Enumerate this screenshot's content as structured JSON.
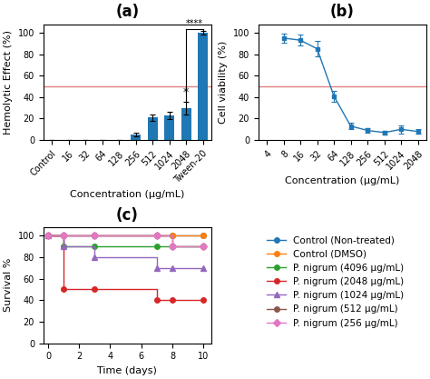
{
  "chart_data": [
    {
      "type": "bar",
      "title": "(a)",
      "xlabel": "Concentration (μg/mL)",
      "ylabel": "Hemolytic Effect (%)",
      "categories": [
        "Control",
        "16",
        "32",
        "64",
        "128",
        "256",
        "512",
        "1024",
        "2048",
        "Tween-20"
      ],
      "values": [
        0,
        0,
        0,
        0,
        0,
        5,
        21,
        23,
        30,
        100
      ],
      "errors": [
        0,
        0,
        0,
        0,
        0,
        1.5,
        3,
        3.5,
        6,
        2
      ],
      "ylim": [
        0,
        108
      ],
      "yticks": [
        0,
        20,
        40,
        60,
        80,
        100
      ],
      "hline": {
        "y": 50,
        "color": "#e08080"
      },
      "annotations": [
        {
          "text": "****",
          "x1": "2048",
          "x2": "Tween-20",
          "y": 103
        },
        {
          "text": "*",
          "x": "2048",
          "y": 39
        }
      ]
    },
    {
      "type": "line",
      "title": "(b)",
      "xlabel": "Concentration (μg/mL)",
      "ylabel": "Cell viability (%)",
      "categories": [
        "4",
        "8",
        "16",
        "32",
        "64",
        "128",
        "256",
        "512",
        "1024",
        "2048"
      ],
      "values": [
        null,
        95,
        93,
        85,
        41,
        13,
        9,
        7,
        10,
        8
      ],
      "errors": [
        null,
        4,
        5,
        7,
        5,
        3,
        2,
        1.5,
        4,
        2
      ],
      "marker": "square",
      "ylim": [
        0,
        108
      ],
      "yticks": [
        0,
        20,
        40,
        60,
        80,
        100
      ],
      "hline": {
        "y": 50,
        "color": "#e08080"
      }
    },
    {
      "type": "step",
      "title": "(c)",
      "xlabel": "Time (days)",
      "ylabel": "Survival %",
      "x": [
        0,
        1,
        3,
        7,
        8,
        10
      ],
      "series": [
        {
          "name": "Control (Non-treated)",
          "marker": "circle",
          "values": [
            100,
            100,
            100,
            100,
            100,
            100
          ]
        },
        {
          "name": "Control (DMSO)",
          "marker": "circle",
          "values": [
            100,
            100,
            100,
            100,
            100,
            100
          ]
        },
        {
          "name": "P. nigrum (4096 μg/mL)",
          "marker": "circle",
          "values": [
            100,
            90,
            90,
            90,
            90,
            90
          ]
        },
        {
          "name": "P. nigrum (2048 μg/mL)",
          "marker": "circle",
          "values": [
            100,
            50,
            50,
            40,
            40,
            40
          ]
        },
        {
          "name": "P. nigrum (1024 μg/mL)",
          "marker": "triangle",
          "values": [
            100,
            90,
            80,
            70,
            70,
            70
          ]
        },
        {
          "name": "P. nigrum (512 μg/mL)",
          "marker": "circle",
          "values": [
            100,
            100,
            100,
            100,
            90,
            90
          ]
        },
        {
          "name": "P. nigrum (256 μg/mL)",
          "marker": "diamond",
          "values": [
            100,
            100,
            100,
            100,
            90,
            90
          ]
        }
      ],
      "xlim": [
        -0.3,
        10.5
      ],
      "xticks": [
        0,
        2,
        4,
        6,
        8,
        10
      ],
      "ylim": [
        0,
        108
      ],
      "yticks": [
        0,
        20,
        40,
        60,
        80,
        100
      ],
      "legend": "upper left"
    }
  ]
}
